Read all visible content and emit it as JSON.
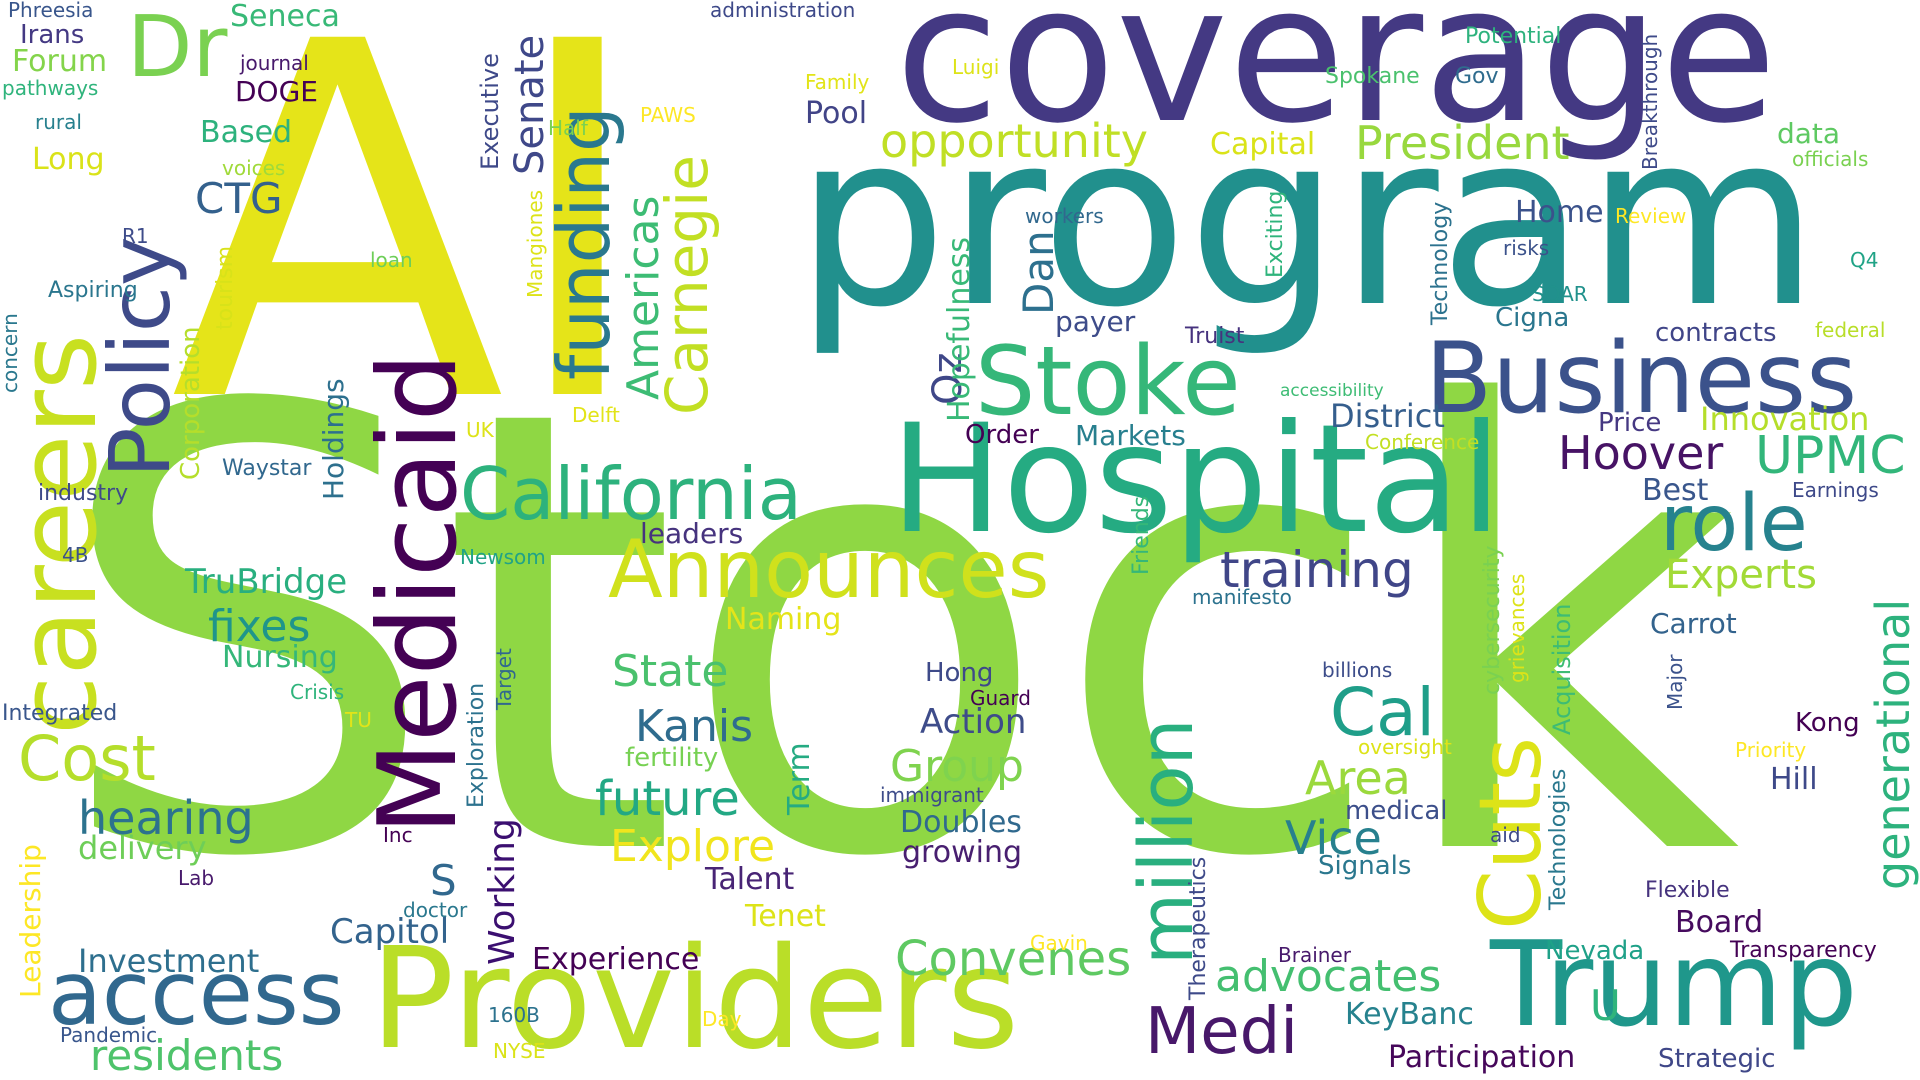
{
  "words": [
    {
      "id": "stock",
      "text": "Stock",
      "color": "#8fd744"
    },
    {
      "id": "ai",
      "text": "AI",
      "color": "#e5e419"
    },
    {
      "id": "program",
      "text": "program",
      "color": "#21908d"
    },
    {
      "id": "coverage",
      "text": "coverage",
      "color": "#443983"
    },
    {
      "id": "hospital",
      "text": "Hospital",
      "color": "#25ab82"
    },
    {
      "id": "providers",
      "text": "Providers",
      "color": "#bade28"
    },
    {
      "id": "medicaid",
      "text": "Medicaid",
      "color": "#440154"
    },
    {
      "id": "careers",
      "text": "careers",
      "color": "#c8e020"
    },
    {
      "id": "trump",
      "text": "Trump",
      "color": "#1f978b"
    },
    {
      "id": "business",
      "text": "Business",
      "color": "#3b528b"
    },
    {
      "id": "stoke",
      "text": "Stoke",
      "color": "#35b779"
    },
    {
      "id": "california",
      "text": "California",
      "color": "#2db27d"
    },
    {
      "id": "announces",
      "text": "Announces",
      "color": "#d0e11c"
    },
    {
      "id": "policy",
      "text": "Policy",
      "color": "#3e4a89"
    },
    {
      "id": "dr",
      "text": "Dr",
      "color": "#7ad151"
    },
    {
      "id": "access",
      "text": "access",
      "color": "#31688e"
    },
    {
      "id": "cuts",
      "text": "Cuts",
      "color": "#dde318"
    },
    {
      "id": "million",
      "text": "million",
      "color": "#29af7f"
    },
    {
      "id": "role",
      "text": "role",
      "color": "#26828e"
    },
    {
      "id": "funding",
      "text": "funding",
      "color": "#2a788e"
    },
    {
      "id": "carnegie",
      "text": "Carnegie",
      "color": "#c2df23"
    },
    {
      "id": "americas",
      "text": "Americas",
      "color": "#3dbc74"
    },
    {
      "id": "president",
      "text": "President",
      "color": "#98d83e"
    },
    {
      "id": "opportunity",
      "text": "opportunity",
      "color": "#c0df25"
    },
    {
      "id": "cost",
      "text": "Cost",
      "color": "#b5de2b"
    },
    {
      "id": "medi",
      "text": "Medi",
      "color": "#48186a"
    },
    {
      "id": "cal",
      "text": "Cal",
      "color": "#1f9e89"
    },
    {
      "id": "convenes",
      "text": "Convenes",
      "color": "#5ec962"
    },
    {
      "id": "advocates",
      "text": "advocates",
      "color": "#44bf70"
    },
    {
      "id": "training",
      "text": "training",
      "color": "#404688"
    },
    {
      "id": "upmc",
      "text": "UPMC",
      "color": "#32b67a"
    },
    {
      "id": "hoover",
      "text": "Hoover",
      "color": "#471365"
    },
    {
      "id": "generational",
      "text": "generational",
      "color": "#2db27d"
    },
    {
      "id": "experts",
      "text": "Experts",
      "color": "#a2da37"
    },
    {
      "id": "senate",
      "text": "Senate",
      "color": "#3f4889"
    },
    {
      "id": "hearing",
      "text": "hearing",
      "color": "#2c728e"
    },
    {
      "id": "future",
      "text": "future",
      "color": "#22a884"
    },
    {
      "id": "explore",
      "text": "Explore",
      "color": "#f1e51d"
    },
    {
      "id": "state",
      "text": "State",
      "color": "#4ac16d"
    },
    {
      "id": "kanis",
      "text": "Kanis",
      "color": "#2f6c8e"
    },
    {
      "id": "group",
      "text": "Group",
      "color": "#7fd34e"
    },
    {
      "id": "area",
      "text": "Area",
      "color": "#9bd93c"
    },
    {
      "id": "vice",
      "text": "Vice",
      "color": "#27808e"
    },
    {
      "id": "residents",
      "text": "residents",
      "color": "#4ec36b"
    },
    {
      "id": "investment",
      "text": "Investment",
      "color": "#2e6f8e"
    },
    {
      "id": "fixes",
      "text": "fixes",
      "color": "#1f958b"
    },
    {
      "id": "trubridge",
      "text": "TruBridge",
      "color": "#29af7f"
    },
    {
      "id": "ctg",
      "text": "CTG",
      "color": "#34618d"
    },
    {
      "id": "working",
      "text": "Working",
      "color": "#3b0f70"
    },
    {
      "id": "capitol",
      "text": "Capitol",
      "color": "#33638d"
    },
    {
      "id": "experience",
      "text": "Experience",
      "color": "#440154"
    },
    {
      "id": "oz",
      "text": "Oz",
      "color": "#3f4788"
    },
    {
      "id": "dan",
      "text": "Dan",
      "color": "#2d708e"
    },
    {
      "id": "markets",
      "text": "Markets",
      "color": "#277f8e"
    },
    {
      "id": "district",
      "text": "District",
      "color": "#355e8d"
    },
    {
      "id": "innovation",
      "text": "Innovation",
      "color": "#b5de2b"
    },
    {
      "id": "price",
      "text": "Price",
      "color": "#453882"
    },
    {
      "id": "best",
      "text": "Best",
      "color": "#39568c"
    },
    {
      "id": "home",
      "text": "Home",
      "color": "#3b528b"
    },
    {
      "id": "pool",
      "text": "Pool",
      "color": "#414487"
    },
    {
      "id": "capital",
      "text": "Capital",
      "color": "#dae319"
    },
    {
      "id": "nursing",
      "text": "Nursing",
      "color": "#35b779"
    },
    {
      "id": "delivery",
      "text": "delivery",
      "color": "#6ece58"
    },
    {
      "id": "doubles",
      "text": "Doubles",
      "color": "#30698e"
    },
    {
      "id": "growing",
      "text": "growing",
      "color": "#481f70"
    },
    {
      "id": "action",
      "text": "Action",
      "color": "#3e4c8a"
    },
    {
      "id": "talent",
      "text": "Talent",
      "color": "#482475"
    },
    {
      "id": "tenet",
      "text": "Tenet",
      "color": "#dde318"
    },
    {
      "id": "keybanc",
      "text": "KeyBanc",
      "color": "#26828e"
    },
    {
      "id": "participation",
      "text": "Participation",
      "color": "#46075a"
    },
    {
      "id": "strategic",
      "text": "Strategic",
      "color": "#3f4788"
    },
    {
      "id": "board",
      "text": "Board",
      "color": "#460b5e"
    },
    {
      "id": "transparency",
      "text": "Transparency",
      "color": "#440154"
    },
    {
      "id": "nevada",
      "text": "Nevada",
      "color": "#1fa188"
    },
    {
      "id": "hill",
      "text": "Hill",
      "color": "#3e4989"
    },
    {
      "id": "kong",
      "text": "Kong",
      "color": "#440154"
    },
    {
      "id": "carrot",
      "text": "Carrot",
      "color": "#33638d"
    },
    {
      "id": "signals",
      "text": "Signals",
      "color": "#2a778e"
    },
    {
      "id": "medical",
      "text": "medical",
      "color": "#3c4f8a"
    },
    {
      "id": "leaders",
      "text": "leaders",
      "color": "#46337e"
    },
    {
      "id": "naming",
      "text": "Naming",
      "color": "#e5e419"
    },
    {
      "id": "fertility",
      "text": "fertility",
      "color": "#77d153"
    },
    {
      "id": "s",
      "text": "S",
      "color": "#31688e"
    },
    {
      "id": "u",
      "text": "U",
      "color": "#2fb47c"
    },
    {
      "id": "long",
      "text": "Long",
      "color": "#dae319"
    },
    {
      "id": "based",
      "text": "Based",
      "color": "#2db27d"
    },
    {
      "id": "forum",
      "text": "Forum",
      "color": "#84d44b"
    },
    {
      "id": "irans",
      "text": "Irans",
      "color": "#443983"
    },
    {
      "id": "seneca",
      "text": "Seneca",
      "color": "#38b977"
    },
    {
      "id": "doge",
      "text": "DOGE",
      "color": "#440154"
    },
    {
      "id": "payer",
      "text": "payer",
      "color": "#3e4c8a"
    },
    {
      "id": "order",
      "text": "Order",
      "color": "#440154"
    },
    {
      "id": "cigna",
      "text": "Cigna",
      "color": "#2a768e"
    },
    {
      "id": "contracts",
      "text": "contracts",
      "color": "#404588"
    },
    {
      "id": "hong",
      "text": "Hong",
      "color": "#3e4a89"
    },
    {
      "id": "data",
      "text": "data",
      "color": "#5ec962"
    },
    {
      "id": "phreesia",
      "text": "Phreesia",
      "color": "#39568c"
    },
    {
      "id": "administration",
      "text": "administration",
      "color": "#3e4989"
    },
    {
      "id": "journal",
      "text": "journal",
      "color": "#481a6c"
    },
    {
      "id": "pathways",
      "text": "pathways",
      "color": "#2fb47c"
    },
    {
      "id": "rural",
      "text": "rural",
      "color": "#27808e"
    },
    {
      "id": "voices",
      "text": "voices",
      "color": "#a0da39"
    },
    {
      "id": "half",
      "text": "Half",
      "color": "#7ad151"
    },
    {
      "id": "paws",
      "text": "PAWS",
      "color": "#fde725"
    },
    {
      "id": "family",
      "text": "Family",
      "color": "#e2e418"
    },
    {
      "id": "luigi",
      "text": "Luigi",
      "color": "#dde318"
    },
    {
      "id": "potential",
      "text": "Potential",
      "color": "#2db27d"
    },
    {
      "id": "spokane",
      "text": "Spokane",
      "color": "#4ac16d"
    },
    {
      "id": "gov",
      "text": "Gov",
      "color": "#2f6c8e"
    },
    {
      "id": "officials",
      "text": "officials",
      "color": "#7ad151"
    },
    {
      "id": "review",
      "text": "Review",
      "color": "#fde725"
    },
    {
      "id": "workers",
      "text": "workers",
      "color": "#31688e"
    },
    {
      "id": "risks",
      "text": "risks",
      "color": "#3b528b"
    },
    {
      "id": "soar",
      "text": "SOAR",
      "color": "#21918c"
    },
    {
      "id": "q4",
      "text": "Q4",
      "color": "#20a386"
    },
    {
      "id": "truist",
      "text": "Truist",
      "color": "#46327e"
    },
    {
      "id": "federal",
      "text": "federal",
      "color": "#b8de29"
    },
    {
      "id": "accessibility",
      "text": "accessibility",
      "color": "#3dbc74"
    },
    {
      "id": "conference",
      "text": "Conference",
      "color": "#c2df23"
    },
    {
      "id": "earnings",
      "text": "Earnings",
      "color": "#3e4989"
    },
    {
      "id": "r1",
      "text": "R1",
      "color": "#3e4c8a"
    },
    {
      "id": "loan",
      "text": "loan",
      "color": "#6ece58"
    },
    {
      "id": "aspiring",
      "text": "Aspiring",
      "color": "#2a768e"
    },
    {
      "id": "industry",
      "text": "industry",
      "color": "#3e4a89"
    },
    {
      "id": "waystar",
      "text": "Waystar",
      "color": "#31688e"
    },
    {
      "id": "uk",
      "text": "UK",
      "color": "#dde318"
    },
    {
      "id": "delft",
      "text": "Delft",
      "color": "#e2e418"
    },
    {
      "id": "4b",
      "text": "4B",
      "color": "#3b528b"
    },
    {
      "id": "newsom",
      "text": "Newsom",
      "color": "#20a386"
    },
    {
      "id": "manifesto",
      "text": "manifesto",
      "color": "#2c728e"
    },
    {
      "id": "billions",
      "text": "billions",
      "color": "#3d4d8a"
    },
    {
      "id": "integrated",
      "text": "Integrated",
      "color": "#39568c"
    },
    {
      "id": "crisis",
      "text": "Crisis",
      "color": "#2fb47c"
    },
    {
      "id": "tu",
      "text": "TU",
      "color": "#e2e418"
    },
    {
      "id": "guard",
      "text": "Guard",
      "color": "#440154"
    },
    {
      "id": "immigrant",
      "text": "immigrant",
      "color": "#3e4c8a"
    },
    {
      "id": "oversight",
      "text": "oversight",
      "color": "#dde318"
    },
    {
      "id": "priority",
      "text": "Priority",
      "color": "#fde725"
    },
    {
      "id": "inc",
      "text": "Inc",
      "color": "#440154"
    },
    {
      "id": "lab",
      "text": "Lab",
      "color": "#481a6c"
    },
    {
      "id": "doctor",
      "text": "doctor",
      "color": "#2a788e"
    },
    {
      "id": "aid",
      "text": "aid",
      "color": "#3e4a89"
    },
    {
      "id": "flexible",
      "text": "Flexible",
      "color": "#46337e"
    },
    {
      "id": "pandemic",
      "text": "Pandemic",
      "color": "#39568c"
    },
    {
      "id": "160b",
      "text": "160B",
      "color": "#2c728e"
    },
    {
      "id": "nyse",
      "text": "NYSE",
      "color": "#dae319"
    },
    {
      "id": "day",
      "text": "Day",
      "color": "#fde725"
    },
    {
      "id": "gavin",
      "text": "Gavin",
      "color": "#fde725"
    },
    {
      "id": "brainer",
      "text": "Brainer",
      "color": "#481a6c"
    },
    {
      "id": "executive",
      "text": "Executive",
      "color": "#3e4989"
    },
    {
      "id": "corporation",
      "text": "Corporation",
      "color": "#b5de2b"
    },
    {
      "id": "tourism",
      "text": "tourism",
      "color": "#d8e219"
    },
    {
      "id": "holdings",
      "text": "Holdings",
      "color": "#2d708e"
    },
    {
      "id": "leadership",
      "text": "Leadership",
      "color": "#fde725"
    },
    {
      "id": "concern",
      "text": "concern",
      "color": "#2a788e"
    },
    {
      "id": "exploration",
      "text": "Exploration",
      "color": "#2c728e"
    },
    {
      "id": "target",
      "text": "Target",
      "color": "#31688e"
    },
    {
      "id": "term",
      "text": "Term",
      "color": "#25ab82"
    },
    {
      "id": "therapeutics",
      "text": "Therapeutics",
      "color": "#3e4a89"
    },
    {
      "id": "friends",
      "text": "Friends",
      "color": "#35b779"
    },
    {
      "id": "hopefulness",
      "text": "Hopefulness",
      "color": "#38b977"
    },
    {
      "id": "exciting",
      "text": "Exciting",
      "color": "#2fb47c"
    },
    {
      "id": "mangiones",
      "text": "Mangiones",
      "color": "#dde318"
    },
    {
      "id": "technology",
      "text": "Technology",
      "color": "#2c728e"
    },
    {
      "id": "breakthrough",
      "text": "Breakthrough",
      "color": "#3e4a89"
    },
    {
      "id": "cybersecurity",
      "text": "cybersecurity",
      "color": "#7ad151"
    },
    {
      "id": "grievances",
      "text": "grievances",
      "color": "#dde318"
    },
    {
      "id": "acquisition",
      "text": "Acquisition",
      "color": "#3dbc74"
    },
    {
      "id": "technologies",
      "text": "Technologies",
      "color": "#2a788e"
    },
    {
      "id": "major",
      "text": "Major",
      "color": "#3b528b"
    }
  ]
}
